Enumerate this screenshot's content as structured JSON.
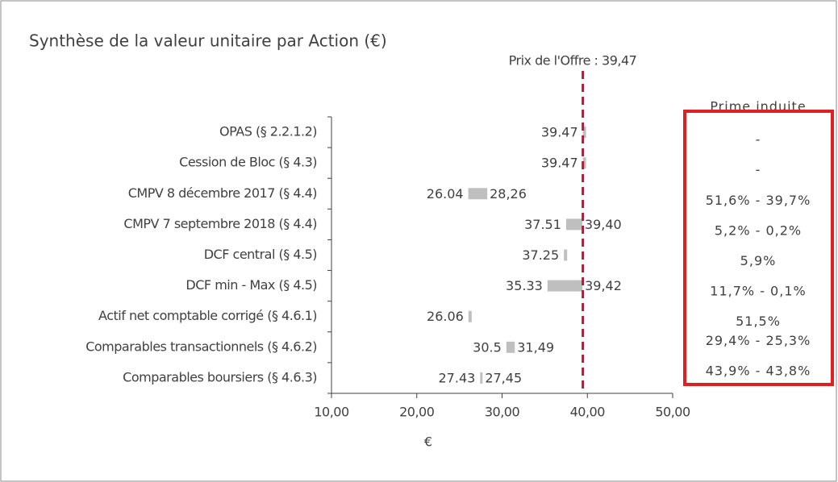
{
  "chart_data": {
    "type": "range_bar",
    "title": "Synthèse de la valeur unitaire par Action (€)",
    "categories": [
      "OPAS (§ 2.2.1.2)",
      "Cession de Bloc (§ 4.3)",
      "CMPV 8 décembre 2017 (§ 4.4)",
      "CMPV 7 septembre 2018 (§ 4.4)",
      "DCF central (§ 4.5)",
      "DCF min - Max (§ 4.5)",
      "Actif net comptable corrigé (§ 4.6.1)",
      "Comparables transactionnels  (§ 4.6.2)",
      "Comparables boursiers (§ 4.6.3)"
    ],
    "low_values": [
      39.47,
      39.47,
      26.04,
      37.51,
      37.25,
      35.33,
      26.06,
      30.5,
      27.43
    ],
    "high_values": [
      null,
      null,
      28.26,
      39.4,
      null,
      39.42,
      null,
      31.49,
      27.45
    ],
    "high_value_labels": [
      null,
      null,
      "28,26",
      "39,40",
      null,
      "39,42",
      null,
      "31,49",
      "27,45"
    ],
    "color": "#bfbfbf",
    "xlim": [
      10,
      50
    ],
    "xticks": [
      {
        "value": 10,
        "label": "10,00"
      },
      {
        "value": 20,
        "label": "20,00"
      },
      {
        "value": 30,
        "label": "30,00"
      },
      {
        "value": 40,
        "label": "40,00"
      },
      {
        "value": 50,
        "label": "50,00"
      }
    ],
    "xlabel": "€",
    "reference_line": {
      "value": 39.47,
      "label": "Prix de l'Offre : 39,47",
      "color": "#c8102e"
    },
    "premium": {
      "title": "Prime induite",
      "values": [
        "-",
        "-",
        "51,6% - 39,7%",
        "5,2% - 0,2%",
        "5,9%",
        "11,7% - 0,1%",
        "51,5%",
        "29,4% - 25,3%",
        "43,9% - 43,8%"
      ],
      "border_color": "#e02020"
    }
  }
}
